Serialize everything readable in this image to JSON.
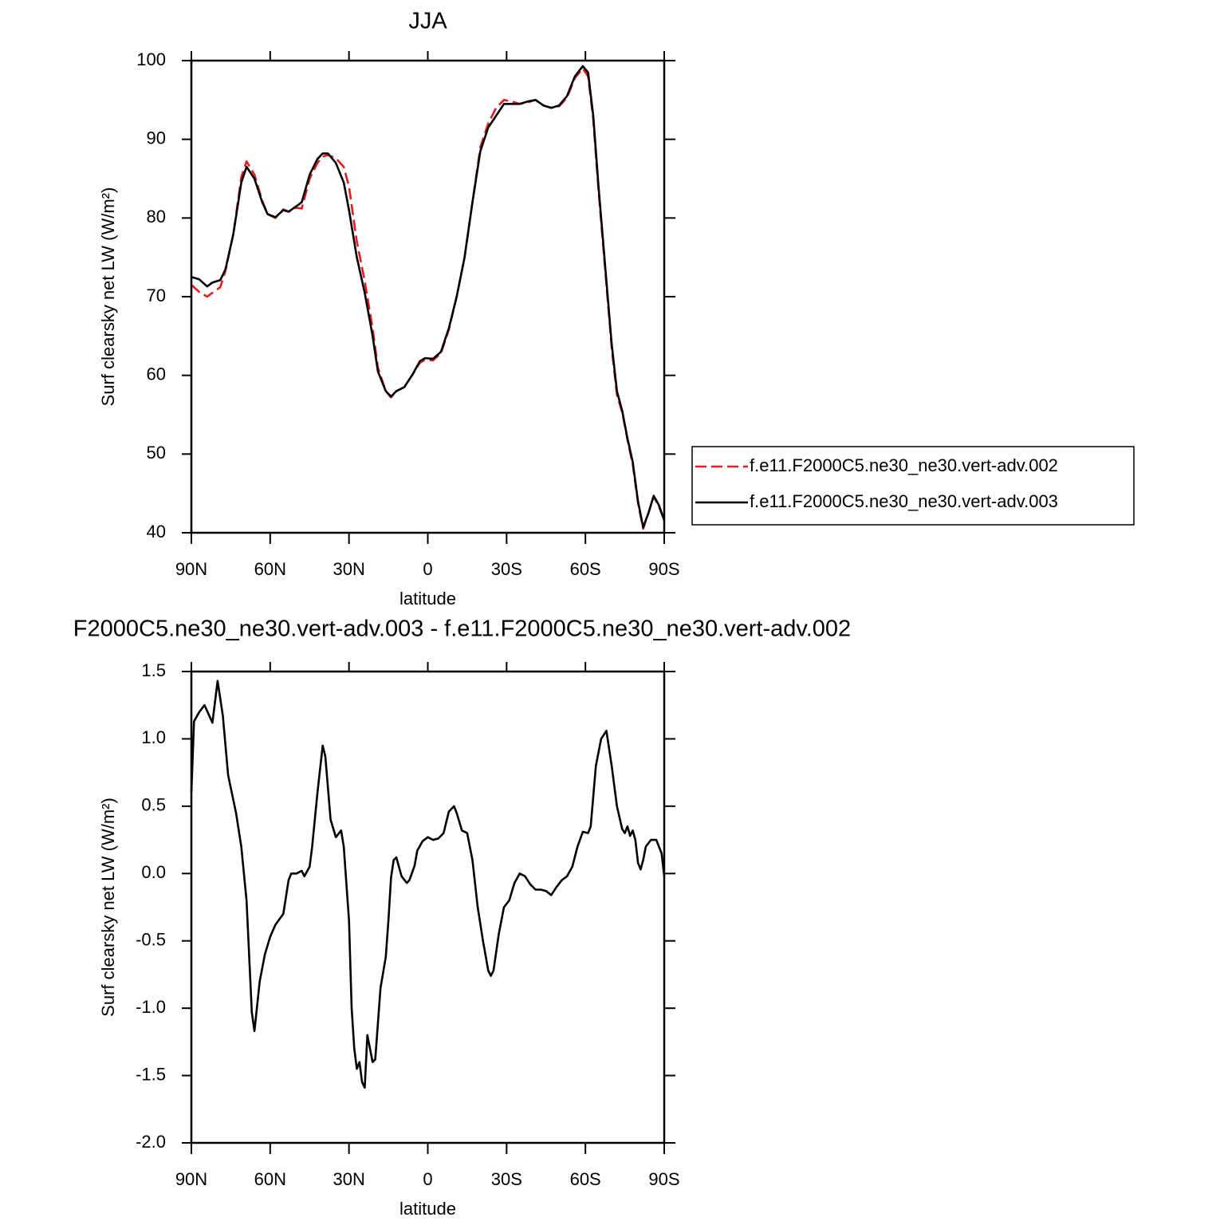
{
  "chart_data": [
    {
      "type": "line",
      "title": "JJA",
      "xlabel": "latitude",
      "ylabel": "Surf clearsky net LW (W/m²)",
      "xlim": [
        90,
        -90
      ],
      "xticks": [
        {
          "value": 90,
          "label": "90N"
        },
        {
          "value": 60,
          "label": "60N"
        },
        {
          "value": 30,
          "label": "30N"
        },
        0,
        {
          "value": -30,
          "label": "30S"
        },
        {
          "value": -60,
          "label": "60S"
        },
        {
          "value": -90,
          "label": "90S"
        }
      ],
      "ylim": [
        40,
        100
      ],
      "yticks": [
        40,
        50,
        60,
        70,
        80,
        90,
        100
      ],
      "legend": "right",
      "x": [
        90,
        87,
        84,
        82,
        79,
        77,
        74,
        71,
        69,
        66,
        63,
        61,
        58,
        55,
        53,
        50,
        48,
        45,
        42,
        40,
        38,
        35,
        32,
        30,
        27,
        24,
        21,
        19,
        16,
        14,
        12,
        9,
        6,
        3,
        1,
        -2,
        -5,
        -8,
        -11,
        -14,
        -17,
        -20,
        -23,
        -26,
        -29,
        -32,
        -35,
        -38,
        -41,
        -44,
        -47,
        -50,
        -53,
        -56,
        -59,
        -61,
        -63,
        -65,
        -68,
        -70,
        -72,
        -74,
        -76,
        -78,
        -80,
        -82,
        -84,
        -86,
        -88,
        -90
      ],
      "series": [
        {
          "name": "f.e11.F2000C5.ne30_ne30.vert-adv.002",
          "color": "#e41a1c",
          "dash": true,
          "values": [
            71.5,
            70.6,
            70.0,
            70.5,
            71.2,
            73.3,
            78,
            85.2,
            87.2,
            85.5,
            82.2,
            80.5,
            80.0,
            81.1,
            80.8,
            81.3,
            81.2,
            85,
            87,
            87.8,
            88,
            87.6,
            86.5,
            84,
            77,
            72,
            66,
            61,
            58,
            57.2,
            58,
            58.5,
            60,
            61.6,
            62,
            61.9,
            62.8,
            65.8,
            70,
            75,
            82,
            89,
            92,
            94,
            95,
            94.8,
            94.5,
            94.7,
            95,
            94.3,
            94,
            94.2,
            95.3,
            97.8,
            99,
            98,
            92.5,
            83.5,
            71.5,
            63.5,
            57.5,
            55.3,
            51.8,
            48.7,
            43.8,
            40.5,
            42.5,
            44.6,
            43.3,
            41.6
          ]
        },
        {
          "name": "f.e11.F2000C5.ne30_ne30.vert-adv.003",
          "color": "#000000",
          "dash": false,
          "values": [
            72.5,
            72.2,
            71.3,
            71.8,
            72.1,
            73.5,
            78,
            84.5,
            86.5,
            85,
            82,
            80.5,
            80.1,
            81,
            80.8,
            81.5,
            82,
            85.5,
            87.5,
            88.2,
            88.2,
            87,
            84.5,
            81,
            75,
            70.5,
            65,
            60.5,
            58,
            57.3,
            58,
            58.5,
            60,
            61.8,
            62.2,
            62.1,
            63,
            66,
            70,
            75,
            82,
            88.5,
            91.5,
            93,
            94.5,
            94.5,
            94.5,
            94.8,
            95,
            94.3,
            94,
            94.3,
            95.5,
            98,
            99.3,
            98.5,
            93,
            84,
            72,
            64,
            58,
            55.5,
            52,
            49,
            44,
            40.7,
            42.5,
            44.7,
            43.5,
            41.6
          ]
        }
      ]
    },
    {
      "type": "line",
      "title": "F2000C5.ne30_ne30.vert-adv.003 - f.e11.F2000C5.ne30_ne30.vert-adv.002",
      "xlabel": "latitude",
      "ylabel": "Surf clearsky net LW (W/m²)",
      "xlim": [
        90,
        -90
      ],
      "xticks": [
        {
          "value": 90,
          "label": "90N"
        },
        {
          "value": 60,
          "label": "60N"
        },
        {
          "value": 30,
          "label": "30N"
        },
        0,
        {
          "value": -30,
          "label": "30S"
        },
        {
          "value": -60,
          "label": "60S"
        },
        {
          "value": -90,
          "label": "90S"
        }
      ],
      "ylim": [
        -2,
        1.5
      ],
      "yticks": [
        {
          "value": -2,
          "label": "-2.0"
        },
        -1.5,
        {
          "value": -1,
          "label": "-1.0"
        },
        -0.5,
        {
          "value": 0,
          "label": "0.0"
        },
        0.5,
        {
          "value": 1,
          "label": "1.0"
        },
        1.5
      ],
      "color": "#000000",
      "x": [
        90,
        89,
        87,
        85,
        82,
        80,
        78,
        76,
        73,
        71,
        69,
        67,
        66,
        64,
        62,
        60,
        58,
        55,
        53,
        52,
        50,
        48,
        47,
        45,
        44,
        42,
        40,
        39,
        37,
        35,
        33,
        32,
        30,
        29,
        28,
        27,
        26,
        25,
        24,
        23,
        22,
        21,
        20,
        18,
        16,
        15,
        14,
        13,
        12,
        10,
        8,
        7,
        5,
        4,
        2,
        0,
        -2,
        -4,
        -6,
        -8,
        -10,
        -11,
        -13,
        -15,
        -17,
        -19,
        -21,
        -23,
        -24,
        -25,
        -27,
        -29,
        -31,
        -33,
        -35,
        -37,
        -39,
        -41,
        -43,
        -45,
        -47,
        -49,
        -51,
        -53,
        -55,
        -57,
        -59,
        -61,
        -62,
        -64,
        -66,
        -68,
        -70,
        -72,
        -74,
        -75,
        -76,
        -77,
        -78,
        -79,
        -80,
        -81,
        -82,
        -83,
        -85,
        -87,
        -89,
        -90
      ],
      "values": [
        0.6,
        1.13,
        1.2,
        1.25,
        1.12,
        1.43,
        1.17,
        0.73,
        0.45,
        0.2,
        -0.2,
        -1.03,
        -1.17,
        -0.8,
        -0.6,
        -0.47,
        -0.38,
        -0.3,
        -0.05,
        0.0,
        0.0,
        0.02,
        -0.02,
        0.05,
        0.2,
        0.6,
        0.95,
        0.87,
        0.4,
        0.27,
        0.32,
        0.2,
        -0.35,
        -1.0,
        -1.3,
        -1.45,
        -1.4,
        -1.55,
        -1.59,
        -1.2,
        -1.3,
        -1.4,
        -1.38,
        -0.85,
        -0.62,
        -0.35,
        -0.03,
        0.1,
        0.12,
        -0.02,
        -0.07,
        -0.05,
        0.06,
        0.17,
        0.24,
        0.27,
        0.25,
        0.26,
        0.3,
        0.46,
        0.5,
        0.45,
        0.32,
        0.3,
        0.1,
        -0.25,
        -0.5,
        -0.72,
        -0.76,
        -0.72,
        -0.45,
        -0.25,
        -0.2,
        -0.07,
        0.0,
        -0.02,
        -0.08,
        -0.12,
        -0.12,
        -0.13,
        -0.16,
        -0.1,
        -0.05,
        -0.02,
        0.05,
        0.2,
        0.31,
        0.3,
        0.35,
        0.8,
        1.0,
        1.06,
        0.8,
        0.5,
        0.33,
        0.3,
        0.35,
        0.28,
        0.32,
        0.25,
        0.08,
        0.03,
        0.1,
        0.2,
        0.25,
        0.25,
        0.15,
        -0.02
      ]
    }
  ]
}
